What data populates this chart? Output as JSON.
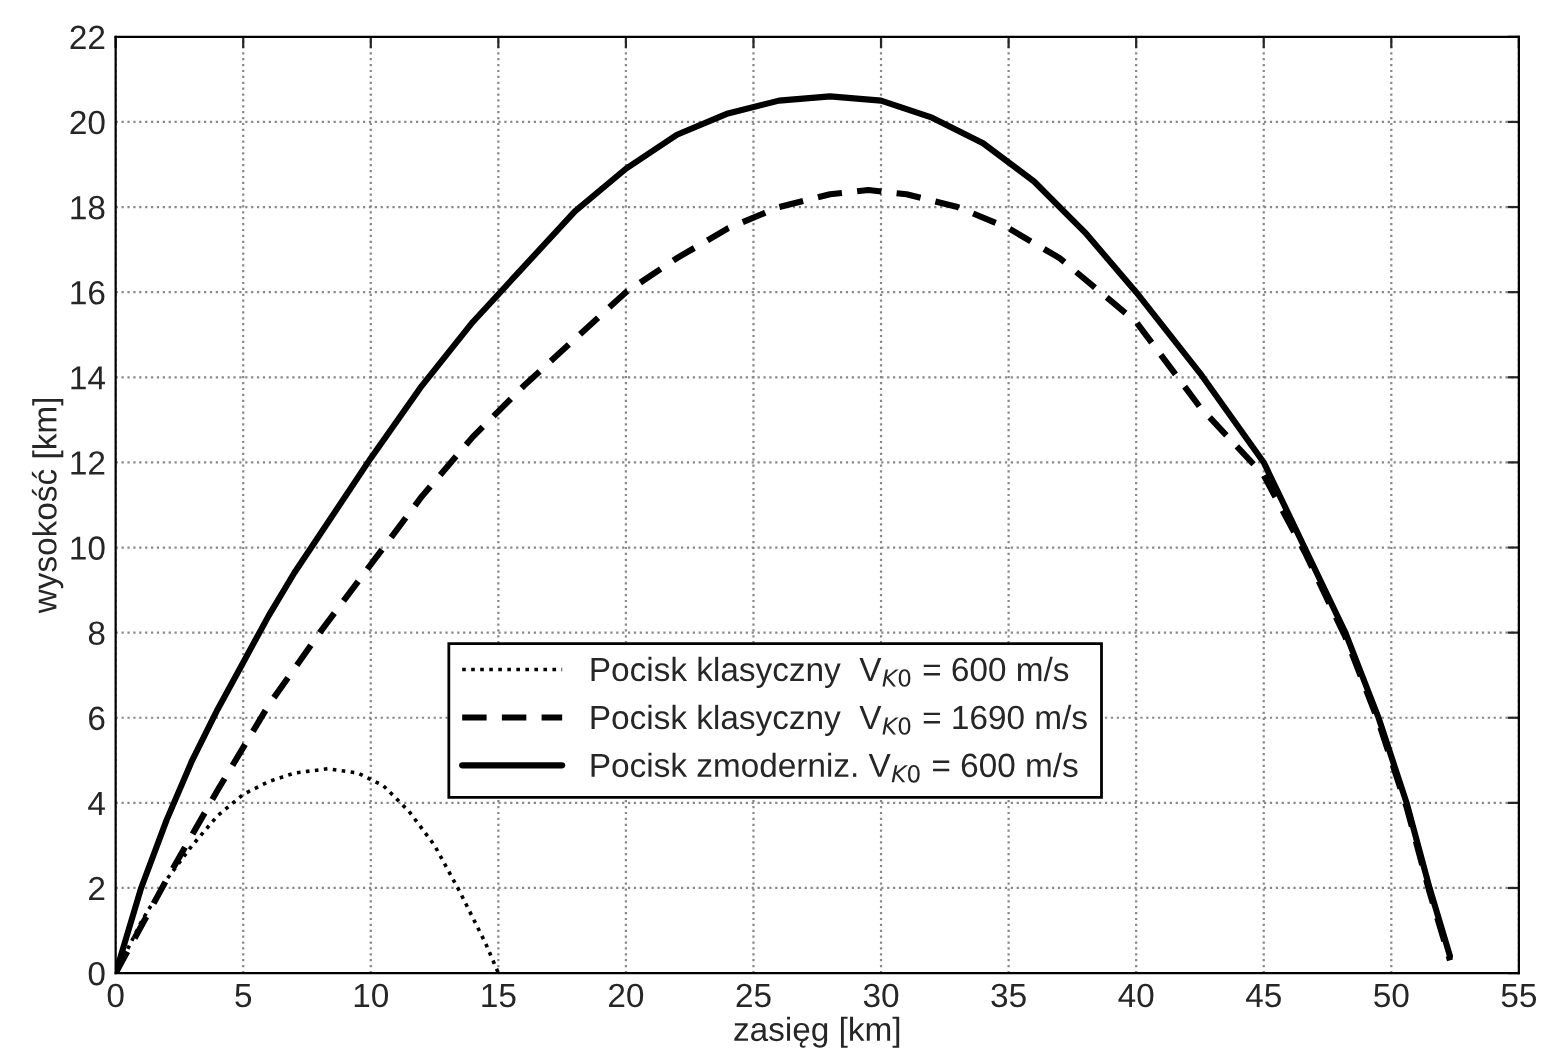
{
  "chart_data": {
    "type": "line",
    "xlabel": "zasięg [km]",
    "ylabel": "wysokość [km]",
    "xlim": [
      0,
      55
    ],
    "xticks": [
      0,
      5,
      10,
      15,
      20,
      25,
      30,
      35,
      40,
      45,
      50,
      55
    ],
    "ylim": [
      0,
      22
    ],
    "yticks": [
      0,
      2,
      4,
      6,
      8,
      10,
      12,
      14,
      16,
      18,
      20,
      22
    ],
    "grid": true,
    "legend": "bottom",
    "marker": "none",
    "series": [
      {
        "name": "Pocisk klasyczny  V$_{K0}$ = 600 m/s",
        "color": "#000000",
        "line_style": "dotted",
        "x": [
          0,
          1,
          2,
          3,
          4,
          5,
          6,
          7,
          8.3,
          9.5,
          10.5,
          11.5,
          12.5,
          13.5,
          14.5,
          15
        ],
        "values": [
          0,
          1.2,
          2.2,
          3.0,
          3.7,
          4.2,
          4.5,
          4.7,
          4.8,
          4.7,
          4.4,
          3.8,
          3.0,
          1.9,
          0.7,
          0
        ]
      },
      {
        "name": "Pocisk klasyczny  V$_{K0}$ = 1690 m/s",
        "color": "#000000",
        "line_style": "dashed",
        "x": [
          0,
          2,
          4,
          6,
          8,
          10,
          12,
          14,
          16,
          18,
          20,
          22,
          24,
          26,
          28,
          29.5,
          31,
          33,
          35,
          37,
          39,
          40,
          42.5,
          45,
          46.6,
          48.2,
          49.5,
          50.6,
          51.5,
          52.3
        ],
        "values": [
          0,
          2.2,
          4.3,
          6.3,
          8.0,
          9.6,
          11.2,
          12.6,
          13.8,
          14.9,
          16.0,
          16.8,
          17.5,
          18.0,
          18.3,
          18.4,
          18.3,
          18.0,
          17.5,
          16.8,
          15.8,
          15.3,
          13.3,
          11.7,
          9.9,
          7.9,
          5.9,
          3.9,
          1.9,
          0.3
        ]
      },
      {
        "name": "Pocisk zmoderniz. V$_{K0}$ = 600 m/s",
        "color": "#000000",
        "line_style": "solid",
        "x": [
          0,
          1,
          2,
          3,
          4,
          5,
          6,
          7,
          8,
          10,
          12,
          14,
          16,
          18,
          20,
          22,
          24,
          26,
          28,
          30,
          32,
          34,
          36,
          38,
          40,
          42.5,
          45,
          46.6,
          48.2,
          49.5,
          50.6,
          51.5,
          52.3
        ],
        "values": [
          0,
          2,
          3.6,
          5,
          6.2,
          7.3,
          8.4,
          9.4,
          10.3,
          12.1,
          13.8,
          15.3,
          16.6,
          17.9,
          18.9,
          19.7,
          20.2,
          20.5,
          20.6,
          20.5,
          20.1,
          19.5,
          18.6,
          17.4,
          16.0,
          14.1,
          12.0,
          10,
          8,
          6,
          4,
          2,
          0.4
        ]
      }
    ]
  }
}
